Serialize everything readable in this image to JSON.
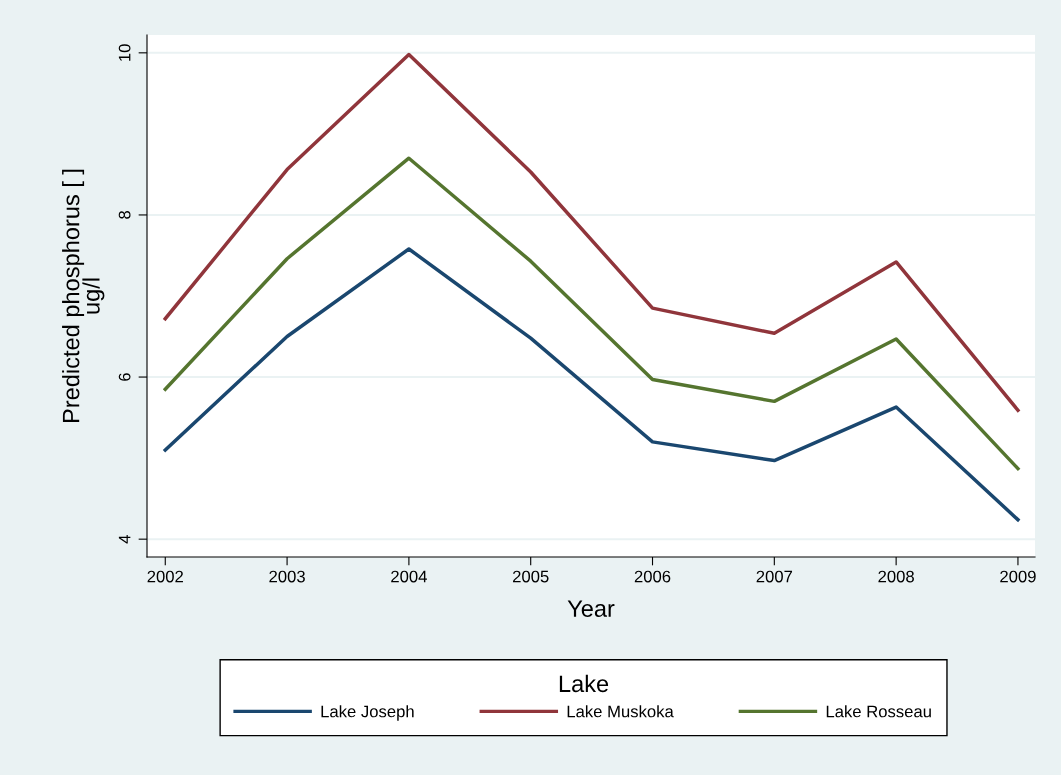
{
  "chart_data": {
    "type": "line",
    "xlabel": "Year",
    "ylabel": "Predicted phosphorus [ ]\nug/l",
    "legend_title": "Lake",
    "x": [
      2002,
      2003,
      2004,
      2005,
      2006,
      2007,
      2008,
      2009
    ],
    "series": [
      {
        "name": "Lake Joseph",
        "color": "#1a476f",
        "values": [
          5.1,
          6.5,
          7.58,
          6.48,
          5.2,
          4.97,
          5.63,
          4.24
        ]
      },
      {
        "name": "Lake Muskoka",
        "color": "#90353b",
        "values": [
          6.72,
          8.56,
          9.98,
          8.53,
          6.85,
          6.54,
          7.42,
          5.59
        ]
      },
      {
        "name": "Lake Rosseau",
        "color": "#55752f",
        "values": [
          5.85,
          7.46,
          8.7,
          7.43,
          5.97,
          5.7,
          6.47,
          4.87
        ]
      }
    ],
    "xlim": [
      2001.85,
      2009.14
    ],
    "xticks": [
      2002,
      2003,
      2004,
      2005,
      2006,
      2007,
      2008,
      2009
    ],
    "ylim": [
      3.78,
      10.22
    ],
    "yticks": [
      4,
      6,
      8,
      10
    ],
    "grid": "y",
    "legend": "bottom",
    "marker": "none",
    "line_style": "solid"
  }
}
